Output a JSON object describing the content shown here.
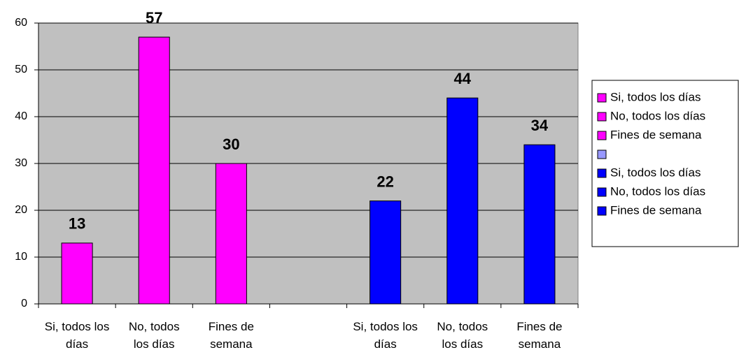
{
  "chart_data": {
    "type": "bar",
    "categories": [
      "Si, todos los días",
      "No, todos los días",
      "Fines de semana",
      null,
      "Si, todos los días",
      "No, todos los días",
      "Fines de semana"
    ],
    "values": [
      13,
      57,
      30,
      null,
      22,
      44,
      34
    ],
    "colors": [
      "#ff00ff",
      "#ff00ff",
      "#ff00ff",
      "#9999ff",
      "#0000ff",
      "#0000ff",
      "#0000ff"
    ],
    "ylim": [
      0,
      60
    ],
    "yticks": [
      0,
      10,
      20,
      30,
      40,
      50,
      60
    ],
    "grid": true,
    "legend": "right"
  }
}
